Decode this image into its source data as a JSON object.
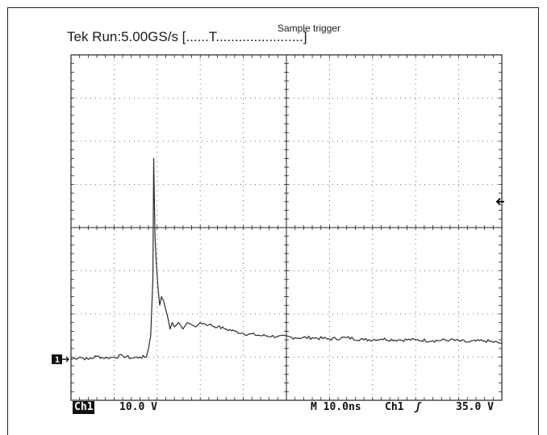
{
  "chart_data": {
    "type": "line",
    "title": "Tek Run:5.00GS/s [......T.......................]",
    "annotation": "Sample trigger",
    "x_divisions": 10,
    "y_divisions": 8,
    "grid": true,
    "x_unit": "ns",
    "y_unit": "V",
    "x_per_div": 10.0,
    "y_per_div": 10.0,
    "x_range_ns": [
      0,
      100
    ],
    "y_range_div": [
      -4,
      4
    ],
    "ground_marker": "1",
    "series": [
      {
        "name": "Ch1",
        "x": [
          0,
          2,
          4,
          6,
          8,
          10,
          12,
          14,
          16,
          17.5,
          18,
          18.5,
          19,
          19.2,
          19.5,
          19.8,
          20.2,
          20.6,
          21,
          21.5,
          22,
          22.5,
          23,
          23.5,
          24,
          25,
          26,
          27,
          28,
          29,
          30,
          32,
          34,
          36,
          38,
          40,
          44,
          48,
          52,
          56,
          60,
          64,
          68,
          72,
          76,
          80,
          84,
          88,
          92,
          96,
          100
        ],
        "y": [
          -3.05,
          -3.0,
          -3.05,
          -2.98,
          -3.02,
          -3.0,
          -2.97,
          -3.02,
          -3.0,
          -3.0,
          -2.8,
          -2.5,
          -1.2,
          1.6,
          -0.2,
          -0.8,
          -1.4,
          -1.8,
          -1.6,
          -1.7,
          -1.9,
          -2.1,
          -2.35,
          -2.2,
          -2.3,
          -2.2,
          -2.35,
          -2.2,
          -2.25,
          -2.3,
          -2.2,
          -2.25,
          -2.3,
          -2.35,
          -2.4,
          -2.45,
          -2.5,
          -2.52,
          -2.55,
          -2.55,
          -2.58,
          -2.55,
          -2.6,
          -2.58,
          -2.6,
          -2.6,
          -2.62,
          -2.6,
          -2.65,
          -2.62,
          -2.68
        ]
      }
    ],
    "footer": {
      "channel": "Ch1",
      "volts_per_div": "10.0 V",
      "timebase": "M 10.0ns",
      "trigger_source": "Ch1",
      "trigger_level": "35.0 V"
    }
  },
  "colors": {
    "trace": "#2a2a2a",
    "grid": "#444444",
    "frame": "#222222"
  }
}
